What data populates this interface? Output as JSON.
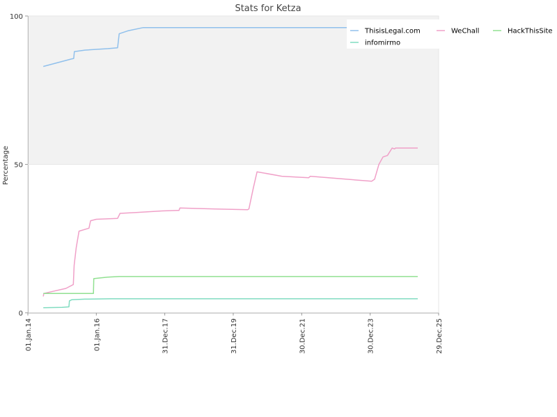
{
  "chart_data": {
    "type": "line",
    "title": "Stats for Ketza",
    "xlabel": "",
    "ylabel": "Percentage",
    "ylim": [
      0,
      100
    ],
    "y_ticks": [
      0,
      50,
      100
    ],
    "xlim": [
      "2014-01-01",
      "2025-12-29"
    ],
    "x_tick_labels": [
      "01.Jan.14",
      "01.Jan.16",
      "31.Dec.17",
      "31.Dec.19",
      "30.Dec.21",
      "30.Dec.23",
      "29.Dec.25"
    ],
    "x_tick_dates": [
      "2014-01-01",
      "2016-01-01",
      "2017-12-31",
      "2019-12-31",
      "2021-12-30",
      "2023-12-30",
      "2025-12-29"
    ],
    "background_band": {
      "from": 50,
      "to": 100,
      "color": "#f2f2f2"
    },
    "grid": false,
    "legend_position": "top-right",
    "series": [
      {
        "name": "ThisisLegal.com",
        "color": "#90c0ec",
        "points": [
          [
            "2014-06-15",
            83
          ],
          [
            "2015-04-10",
            85.5
          ],
          [
            "2015-05-05",
            85.7
          ],
          [
            "2015-05-12",
            88
          ],
          [
            "2015-09-01",
            88.5
          ],
          [
            "2016-05-01",
            89
          ],
          [
            "2016-08-15",
            89.3
          ],
          [
            "2016-09-01",
            94
          ],
          [
            "2016-12-01",
            95
          ],
          [
            "2017-05-15",
            96.1
          ],
          [
            "2023-12-20",
            96.1
          ]
        ]
      },
      {
        "name": "WeChall",
        "color": "#f0a0c8",
        "points": [
          [
            "2014-06-15",
            5.5
          ],
          [
            "2014-06-20",
            6.5
          ],
          [
            "2015-02-10",
            8.2
          ],
          [
            "2015-05-01",
            9.5
          ],
          [
            "2015-05-10",
            16
          ],
          [
            "2015-06-01",
            22
          ],
          [
            "2015-07-01",
            27.5
          ],
          [
            "2015-10-15",
            28.5
          ],
          [
            "2015-11-01",
            31
          ],
          [
            "2016-01-01",
            31.5
          ],
          [
            "2016-08-15",
            31.8
          ],
          [
            "2016-09-10",
            33.5
          ],
          [
            "2017-03-01",
            33.8
          ],
          [
            "2017-12-01",
            34.3
          ],
          [
            "2018-06-01",
            34.5
          ],
          [
            "2018-06-10",
            35.3
          ],
          [
            "2019-06-01",
            35
          ],
          [
            "2020-06-01",
            34.7
          ],
          [
            "2020-06-15",
            35
          ],
          [
            "2020-08-01",
            42
          ],
          [
            "2020-09-10",
            47.5
          ],
          [
            "2021-06-01",
            46
          ],
          [
            "2022-03-15",
            45.5
          ],
          [
            "2022-04-01",
            46
          ],
          [
            "2024-01-15",
            44.3
          ],
          [
            "2024-02-15",
            45
          ],
          [
            "2024-04-01",
            50
          ],
          [
            "2024-05-15",
            52.5
          ],
          [
            "2024-07-01",
            53
          ],
          [
            "2024-08-20",
            55.5
          ],
          [
            "2024-09-15",
            55.2
          ],
          [
            "2024-09-25",
            55.5
          ],
          [
            "2025-05-20",
            55.5
          ]
        ]
      },
      {
        "name": "HackThisSite",
        "color": "#90e090",
        "points": [
          [
            "2014-06-15",
            6.5
          ],
          [
            "2015-12-01",
            6.5
          ],
          [
            "2015-12-05",
            11.5
          ],
          [
            "2016-05-01",
            12
          ],
          [
            "2016-09-01",
            12.2
          ],
          [
            "2025-05-20",
            12.2
          ]
        ]
      },
      {
        "name": "infomirmo",
        "color": "#80dcc0",
        "points": [
          [
            "2014-06-15",
            1.7
          ],
          [
            "2015-01-01",
            1.8
          ],
          [
            "2015-03-15",
            2
          ],
          [
            "2015-03-20",
            4
          ],
          [
            "2015-04-15",
            4.4
          ],
          [
            "2015-09-01",
            4.6
          ],
          [
            "2016-06-01",
            4.7
          ],
          [
            "2025-05-20",
            4.7
          ]
        ]
      }
    ]
  }
}
